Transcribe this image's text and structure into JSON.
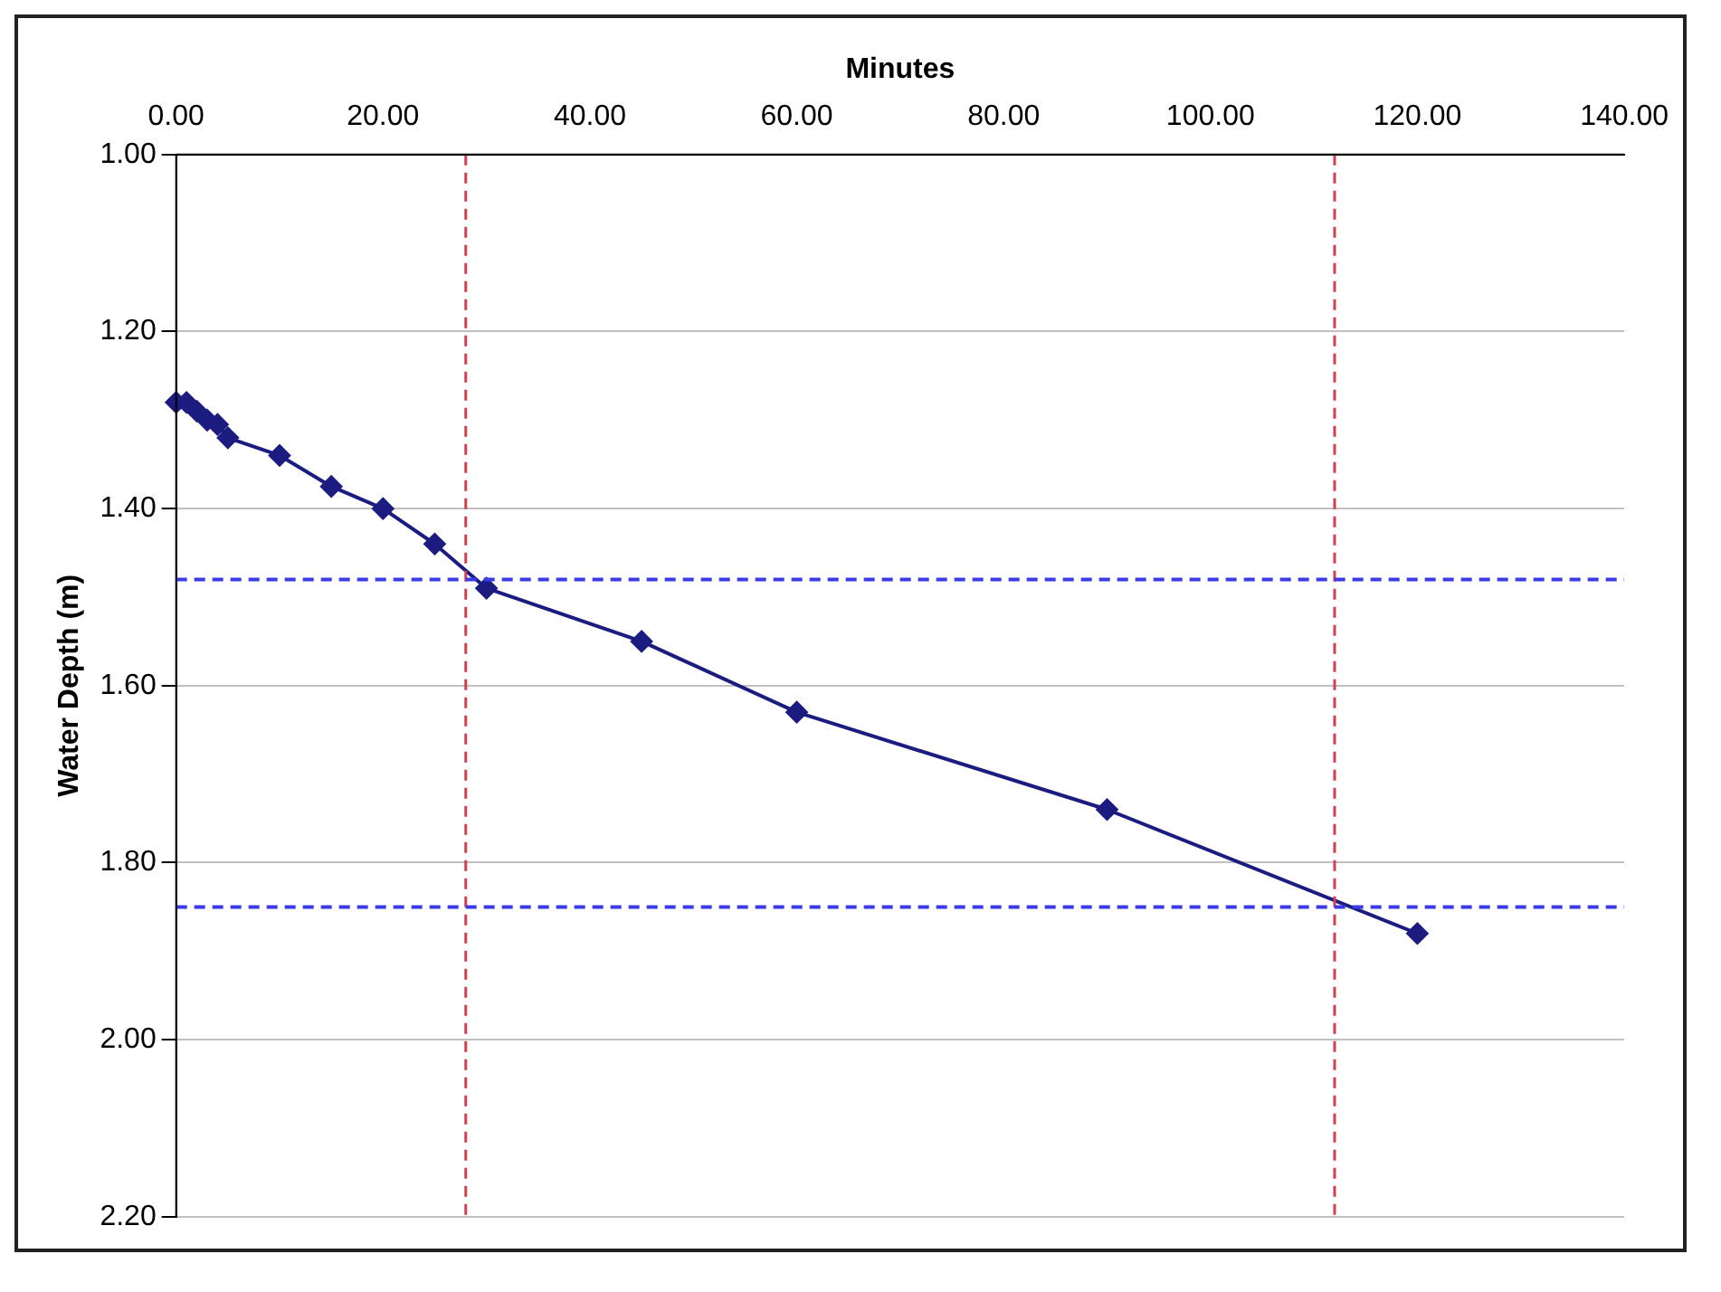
{
  "chart_data": {
    "type": "line",
    "xlabel": "Minutes",
    "ylabel": "Water Depth (m)",
    "x": [
      0,
      1,
      2,
      3,
      4,
      5,
      10,
      15,
      20,
      25,
      30,
      45,
      60,
      90,
      120
    ],
    "series": [
      {
        "color": "#1c1c80",
        "values": [
          1.28,
          1.28,
          1.29,
          1.3,
          1.305,
          1.32,
          1.34,
          1.375,
          1.4,
          1.44,
          1.49,
          1.55,
          1.63,
          1.74,
          1.88
        ]
      }
    ],
    "xlim": [
      0,
      140
    ],
    "xticks": [
      {
        "value": 0,
        "label": "0.00"
      },
      {
        "value": 20,
        "label": "20.00"
      },
      {
        "value": 40,
        "label": "40.00"
      },
      {
        "value": 60,
        "label": "60.00"
      },
      {
        "value": 80,
        "label": "80.00"
      },
      {
        "value": 100,
        "label": "100.00"
      },
      {
        "value": 120,
        "label": "120.00"
      },
      {
        "value": 140,
        "label": "140.00"
      }
    ],
    "ylim": [
      2.2,
      1.0
    ],
    "yticks": [
      {
        "value": 1.0,
        "label": "1.00"
      },
      {
        "value": 1.2,
        "label": "1.20"
      },
      {
        "value": 1.4,
        "label": "1.40"
      },
      {
        "value": 1.6,
        "label": "1.60"
      },
      {
        "value": 1.8,
        "label": "1.80"
      },
      {
        "value": 2.0,
        "label": "2.00"
      },
      {
        "value": 2.2,
        "label": "2.20"
      }
    ],
    "ref_lines": [
      {
        "axis": "x",
        "value": 28,
        "color": "#d04050",
        "line_style": "dashed"
      },
      {
        "axis": "x",
        "value": 112,
        "color": "#d04050",
        "line_style": "dashed"
      },
      {
        "axis": "y",
        "value": 1.48,
        "color": "#3a3ae8",
        "line_style": "dashed"
      },
      {
        "axis": "y",
        "value": 1.85,
        "color": "#3a3ae8",
        "line_style": "dashed"
      }
    ],
    "grid": "y",
    "legend": false,
    "marker": "diamond",
    "line_style": "solid"
  }
}
